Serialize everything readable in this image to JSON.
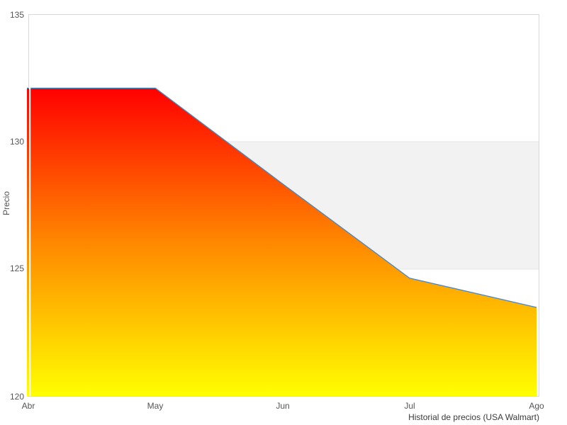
{
  "figure": {
    "background": "#ffffff",
    "caption": "Historial de precios (USA Walmart)"
  },
  "chart_data": {
    "type": "area",
    "title": "Historial de precios (USA Walmart)",
    "xlabel": "",
    "ylabel": "Precio",
    "x_tick_labels": [
      "Abr",
      "May",
      "Jun",
      "Jul",
      "Ago"
    ],
    "y_tick_labels": [
      "135",
      "130",
      "125",
      "120"
    ],
    "y_ticks": [
      135,
      130,
      125,
      120
    ],
    "ylim": [
      120,
      135
    ],
    "x_months_visible": [
      0,
      4.022
    ],
    "grid": false,
    "legend": null,
    "band": {
      "from": 125,
      "to": 130,
      "fill": "#f2f2f2",
      "edge_color": "#e6e6e6"
    },
    "series": [
      {
        "name": "Precio",
        "line_color": "#4f87b9",
        "fill_gradient": [
          "#ff0000",
          "#ff8800",
          "#ffff00"
        ],
        "points": [
          {
            "month_index": -0.011,
            "value": 132.1
          },
          {
            "month_index": 1,
            "value": 132.1
          },
          {
            "month_index": 2,
            "value": 128.35
          },
          {
            "month_index": 3,
            "value": 124.65
          },
          {
            "month_index": 4,
            "value": 123.5
          }
        ]
      }
    ],
    "axis_color": "#d8d8d8",
    "tick_label_color": "#555555",
    "caption_color": "#3a3a3a"
  }
}
